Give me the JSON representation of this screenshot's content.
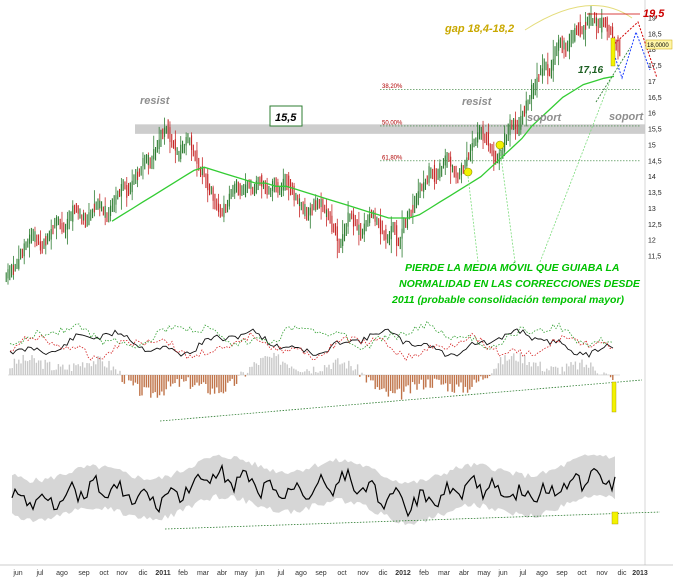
{
  "chart_data": {
    "type": "candlestick",
    "price_panel": {
      "y_ticks": [
        "19",
        "18,5",
        "18",
        "17,5",
        "17",
        "16,5",
        "16",
        "15,5",
        "15",
        "14,5",
        "14",
        "13,5",
        "13",
        "12,5",
        "12",
        "11,5"
      ],
      "ylim": [
        11,
        19.5
      ],
      "last_price_label": "18,0000",
      "moving_average_color": "#33cc33",
      "up_candle_color": "#2e7d32",
      "down_candle_color": "#c62828",
      "support_resistance_band": {
        "low": 15.35,
        "high": 15.65,
        "color": "#c8c8c8"
      },
      "fib_levels": [
        {
          "label": "38,20%",
          "value": 16.75
        },
        {
          "label": "50,00%",
          "value": 15.6
        },
        {
          "label": "61,80%",
          "value": 14.5
        }
      ],
      "annotations": {
        "resist_left": "resist",
        "resist_mid": "resist",
        "level_box": "15,5",
        "soport_mid": "soport",
        "soport_right": "soport",
        "gap": "gap 18,4-18,2",
        "target_high": "19,5",
        "ma_value": "17,16",
        "comment_line1": "PIERDE LA MEDIA MÓVIL QUE GUIABA LA",
        "comment_line2": "NORMALIDAD EN LAS CORRECCIONES DESDE",
        "comment_line3": "2011 (probable consolidación temporal mayor)"
      },
      "close_series": [
        11.0,
        11.2,
        11.5,
        11.9,
        12.2,
        12.0,
        11.8,
        12.1,
        12.4,
        12.6,
        12.3,
        12.7,
        13.0,
        12.8,
        12.6,
        12.9,
        13.2,
        13.0,
        12.8,
        13.1,
        13.4,
        13.7,
        13.5,
        13.9,
        14.2,
        14.6,
        14.4,
        14.9,
        15.3,
        15.6,
        15.1,
        14.7,
        14.9,
        15.2,
        14.8,
        14.3,
        14.0,
        13.6,
        13.2,
        12.9,
        13.1,
        13.4,
        13.7,
        13.5,
        13.8,
        13.6,
        13.9,
        13.7,
        13.5,
        13.8,
        13.6,
        13.9,
        13.6,
        13.3,
        13.1,
        12.8,
        13.0,
        13.3,
        13.1,
        12.7,
        12.4,
        11.8,
        12.3,
        12.8,
        12.5,
        12.2,
        12.6,
        12.9,
        12.6,
        12.3,
        12.0,
        12.4,
        11.9,
        12.5,
        12.8,
        13.2,
        13.6,
        13.9,
        14.2,
        14.0,
        14.3,
        14.6,
        14.2,
        14.0,
        14.3,
        14.7,
        15.1,
        15.4,
        15.3,
        14.9,
        14.5,
        14.8,
        15.3,
        15.7,
        15.5,
        16.0,
        16.4,
        16.8,
        17.2,
        17.5,
        17.3,
        17.9,
        18.2,
        18.0,
        18.4,
        18.7,
        18.5,
        18.9,
        19.0,
        18.7,
        18.9,
        18.6,
        18.3,
        18.0
      ],
      "ma_series": [
        12.6,
        12.8,
        13.0,
        13.2,
        13.4,
        13.6,
        13.8,
        14.0,
        14.2,
        14.3,
        14.2,
        14.1,
        14.0,
        13.9,
        13.8,
        13.8,
        13.7,
        13.7,
        13.6,
        13.5,
        13.4,
        13.3,
        13.2,
        13.1,
        13.0,
        12.9,
        12.8,
        12.7,
        12.7,
        12.7,
        12.8,
        13.0,
        13.2,
        13.4,
        13.6,
        13.8,
        14.0,
        14.3,
        14.6,
        14.9,
        15.2,
        15.6,
        15.9,
        16.2,
        16.5,
        16.7,
        16.9,
        17.0,
        17.1,
        17.16
      ]
    },
    "oscillator_panel": {
      "histogram_zero_label": "",
      "lines": [
        "black",
        "green-dotted",
        "red-dotted"
      ]
    },
    "rsi_panel": {
      "band_color": "#d6d6d6"
    },
    "x_axis": {
      "labels": [
        "jun",
        "jul",
        "ago",
        "sep",
        "oct",
        "nov",
        "dic",
        "2011",
        "feb",
        "mar",
        "abr",
        "may",
        "jun",
        "jul",
        "ago",
        "sep",
        "oct",
        "nov",
        "dic",
        "2012",
        "feb",
        "mar",
        "abr",
        "may",
        "jun",
        "jul",
        "ago",
        "sep",
        "oct",
        "nov",
        "dic",
        "2013"
      ],
      "bold_labels": [
        "2011",
        "2012",
        "2013"
      ]
    }
  }
}
